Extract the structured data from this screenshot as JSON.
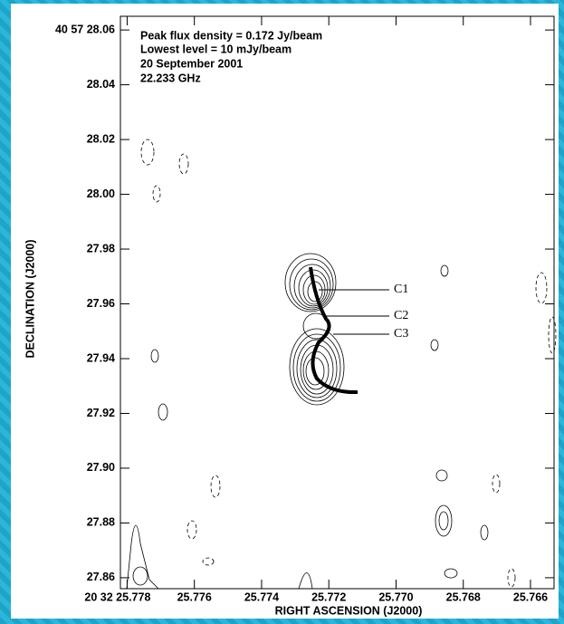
{
  "chart_data": {
    "type": "contour",
    "annotations": [
      "Peak flux density = 0.172 Jy/beam",
      "Lowest level = 10 mJy/beam",
      "20 September 2001",
      "22.233 GHz"
    ],
    "component_labels": [
      "C1",
      "C2",
      "C3"
    ],
    "xlabel": "RIGHT ASCENSION (J2000)",
    "ylabel": "DECLINATION (J2000)",
    "xlim": [
      25.7782,
      25.7653
    ],
    "ylim": [
      27.856,
      28.065
    ],
    "xticks": [
      {
        "value": 25.778,
        "label": "20 32 25.778"
      },
      25.776,
      25.774,
      25.772,
      {
        "value": 25.77,
        "label": "25.770"
      },
      25.768,
      25.766
    ],
    "yticks": [
      {
        "value": 28.06,
        "label": "40 57 28.06"
      },
      28.04,
      28.02,
      {
        "value": 28,
        "label": "28.00"
      },
      27.98,
      27.96,
      27.94,
      27.92,
      {
        "value": 27.9,
        "label": "27.90"
      },
      27.88,
      27.86
    ]
  }
}
